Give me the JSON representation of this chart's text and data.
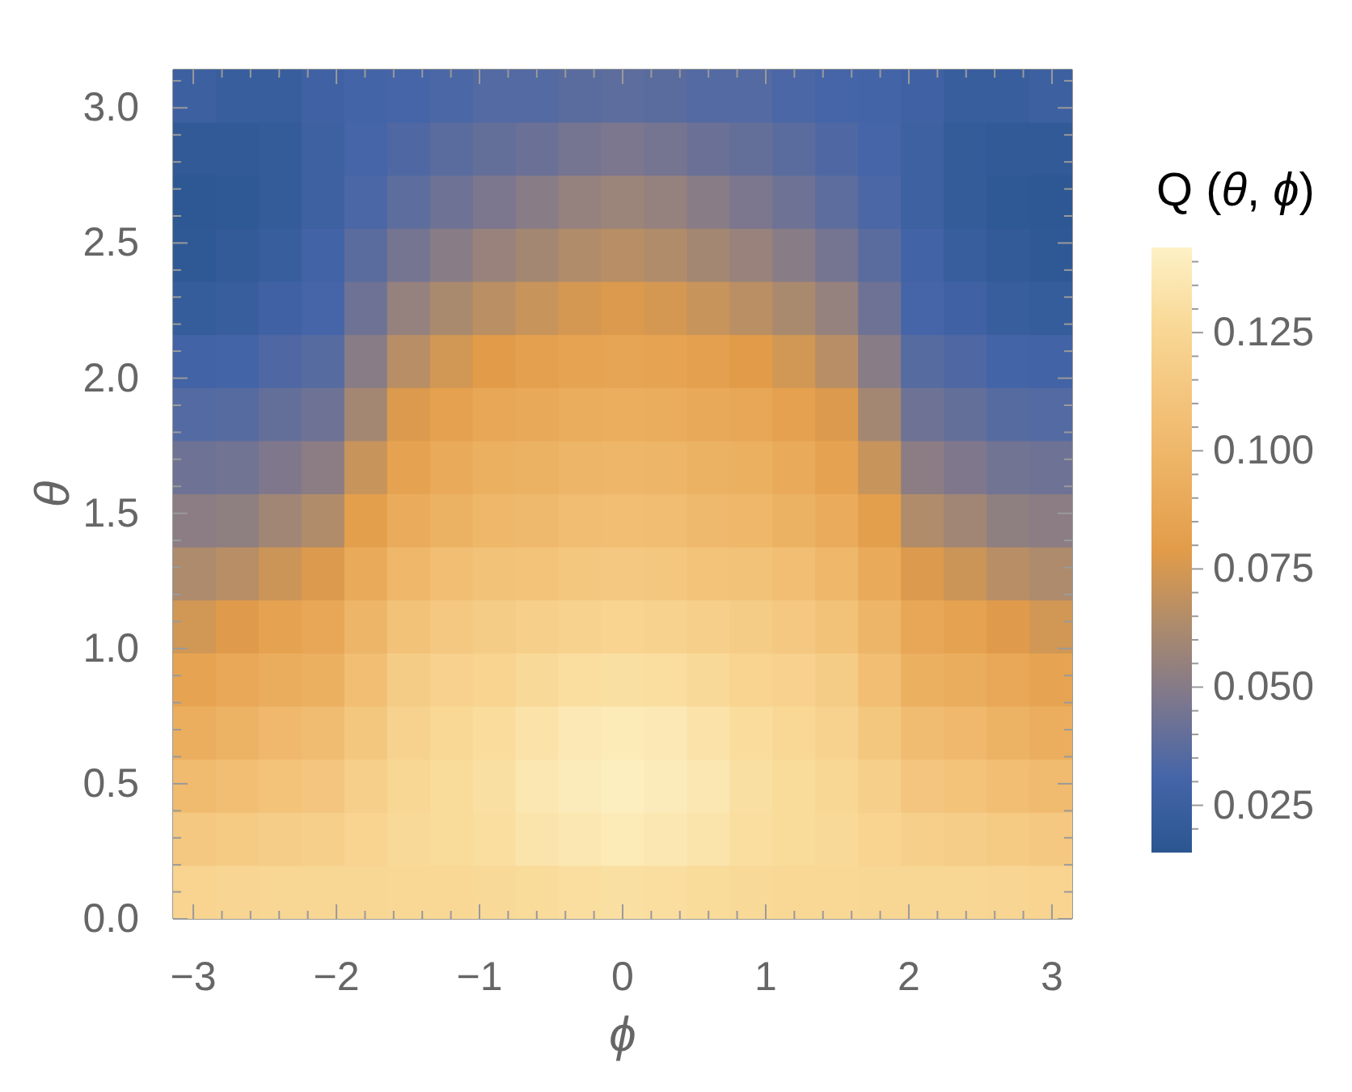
{
  "chart_data": {
    "type": "heatmap",
    "xlabel": "ϕ",
    "ylabel": "θ",
    "clabel": "Q (θ, ϕ)",
    "xlim": [
      -3.1416,
      3.1416
    ],
    "xticks": [
      {
        "value": -3,
        "label": "−3"
      },
      {
        "value": -2.8,
        "label": null
      },
      {
        "value": -2.6,
        "label": null
      },
      {
        "value": -2.4,
        "label": null
      },
      {
        "value": -2.2,
        "label": null
      },
      {
        "value": -2,
        "label": "−2"
      },
      {
        "value": -1.8,
        "label": null
      },
      {
        "value": -1.6,
        "label": null
      },
      {
        "value": -1.4,
        "label": null
      },
      {
        "value": -1.2,
        "label": null
      },
      {
        "value": -1,
        "label": "−1"
      },
      {
        "value": -0.8,
        "label": null
      },
      {
        "value": -0.6,
        "label": null
      },
      {
        "value": -0.4,
        "label": null
      },
      {
        "value": -0.2,
        "label": null
      },
      0,
      {
        "value": 0.2,
        "label": null
      },
      {
        "value": 0.4,
        "label": null
      },
      {
        "value": 0.6,
        "label": null
      },
      {
        "value": 0.8,
        "label": null
      },
      1,
      {
        "value": 1.2,
        "label": null
      },
      {
        "value": 1.4,
        "label": null
      },
      {
        "value": 1.6,
        "label": null
      },
      {
        "value": 1.8,
        "label": null
      },
      2,
      {
        "value": 2.2,
        "label": null
      },
      {
        "value": 2.4,
        "label": null
      },
      {
        "value": 2.6,
        "label": null
      },
      {
        "value": 2.8,
        "label": null
      },
      3
    ],
    "ylim": [
      0,
      3.1416
    ],
    "yticks": [
      {
        "value": 0,
        "label": "0.0"
      },
      {
        "value": 0.1,
        "label": null
      },
      {
        "value": 0.2,
        "label": null
      },
      {
        "value": 0.3,
        "label": null
      },
      {
        "value": 0.4,
        "label": null
      },
      0.5,
      {
        "value": 0.6,
        "label": null
      },
      {
        "value": 0.7,
        "label": null
      },
      {
        "value": 0.8,
        "label": null
      },
      {
        "value": 0.9,
        "label": null
      },
      {
        "value": 1,
        "label": "1.0"
      },
      {
        "value": 1.1,
        "label": null
      },
      {
        "value": 1.2,
        "label": null
      },
      {
        "value": 1.3,
        "label": null
      },
      {
        "value": 1.4,
        "label": null
      },
      1.5,
      {
        "value": 1.6,
        "label": null
      },
      {
        "value": 1.7,
        "label": null
      },
      {
        "value": 1.8,
        "label": null
      },
      {
        "value": 1.9,
        "label": null
      },
      {
        "value": 2,
        "label": "2.0"
      },
      {
        "value": 2.1,
        "label": null
      },
      {
        "value": 2.2,
        "label": null
      },
      {
        "value": 2.3,
        "label": null
      },
      {
        "value": 2.4,
        "label": null
      },
      2.5,
      {
        "value": 2.6,
        "label": null
      },
      {
        "value": 2.7,
        "label": null
      },
      {
        "value": 2.8,
        "label": null
      },
      {
        "value": 2.9,
        "label": null
      },
      {
        "value": 3,
        "label": "3.0"
      },
      {
        "value": 3.1,
        "label": null
      }
    ],
    "clim": [
      0.015,
      0.143
    ],
    "cticks": [
      {
        "value": 0.02,
        "label": null
      },
      0.025,
      {
        "value": 0.03,
        "label": null
      },
      {
        "value": 0.035,
        "label": null
      },
      {
        "value": 0.04,
        "label": null
      },
      {
        "value": 0.045,
        "label": null
      },
      {
        "value": 0.05,
        "label": "0.050"
      },
      {
        "value": 0.055,
        "label": null
      },
      {
        "value": 0.06,
        "label": null
      },
      {
        "value": 0.065,
        "label": null
      },
      {
        "value": 0.07,
        "label": null
      },
      0.075,
      {
        "value": 0.08,
        "label": null
      },
      {
        "value": 0.085,
        "label": null
      },
      {
        "value": 0.09,
        "label": null
      },
      {
        "value": 0.095,
        "label": null
      },
      {
        "value": 0.1,
        "label": "0.100"
      },
      {
        "value": 0.105,
        "label": null
      },
      {
        "value": 0.11,
        "label": null
      },
      {
        "value": 0.115,
        "label": null
      },
      {
        "value": 0.12,
        "label": null
      },
      0.125,
      {
        "value": 0.13,
        "label": null
      },
      {
        "value": 0.135,
        "label": null
      },
      {
        "value": 0.14,
        "label": null
      }
    ],
    "colors": [
      "#2a5690",
      "#4565a8",
      "#7c778e",
      "#ad8b6c",
      "#e29c49",
      "#ecb162",
      "#f3c47c",
      "#f9d997",
      "#fdf1c6"
    ],
    "cells": [
      [
        0.026,
        0.024,
        0.024,
        0.028,
        0.03,
        0.031,
        0.033,
        0.035,
        0.035,
        0.037,
        0.038,
        0.037,
        0.035,
        0.035,
        0.033,
        0.031,
        0.03,
        0.028,
        0.024,
        0.024,
        0.026
      ],
      [
        0.019,
        0.019,
        0.021,
        0.027,
        0.031,
        0.034,
        0.037,
        0.04,
        0.042,
        0.045,
        0.047,
        0.045,
        0.042,
        0.04,
        0.037,
        0.034,
        0.031,
        0.027,
        0.021,
        0.019,
        0.019
      ],
      [
        0.017,
        0.018,
        0.021,
        0.027,
        0.033,
        0.038,
        0.043,
        0.047,
        0.051,
        0.055,
        0.057,
        0.055,
        0.051,
        0.047,
        0.043,
        0.038,
        0.033,
        0.027,
        0.021,
        0.018,
        0.017
      ],
      [
        0.018,
        0.02,
        0.024,
        0.029,
        0.037,
        0.045,
        0.051,
        0.056,
        0.06,
        0.064,
        0.066,
        0.064,
        0.06,
        0.056,
        0.051,
        0.045,
        0.037,
        0.029,
        0.024,
        0.02,
        0.018
      ],
      [
        0.022,
        0.024,
        0.028,
        0.031,
        0.043,
        0.055,
        0.062,
        0.067,
        0.071,
        0.075,
        0.077,
        0.075,
        0.071,
        0.067,
        0.062,
        0.055,
        0.043,
        0.031,
        0.028,
        0.024,
        0.022
      ],
      [
        0.029,
        0.03,
        0.034,
        0.036,
        0.051,
        0.066,
        0.074,
        0.079,
        0.082,
        0.085,
        0.086,
        0.085,
        0.082,
        0.079,
        0.074,
        0.066,
        0.051,
        0.036,
        0.034,
        0.03,
        0.029
      ],
      [
        0.035,
        0.036,
        0.04,
        0.043,
        0.06,
        0.077,
        0.083,
        0.087,
        0.089,
        0.092,
        0.093,
        0.092,
        0.089,
        0.087,
        0.083,
        0.077,
        0.06,
        0.043,
        0.04,
        0.036,
        0.035
      ],
      [
        0.043,
        0.044,
        0.048,
        0.052,
        0.071,
        0.084,
        0.09,
        0.094,
        0.096,
        0.098,
        0.099,
        0.098,
        0.096,
        0.094,
        0.09,
        0.084,
        0.071,
        0.052,
        0.048,
        0.044,
        0.043
      ],
      [
        0.052,
        0.053,
        0.059,
        0.064,
        0.081,
        0.091,
        0.096,
        0.1,
        0.102,
        0.105,
        0.106,
        0.105,
        0.102,
        0.1,
        0.096,
        0.091,
        0.081,
        0.064,
        0.059,
        0.053,
        0.052
      ],
      [
        0.063,
        0.066,
        0.072,
        0.077,
        0.09,
        0.1,
        0.106,
        0.109,
        0.11,
        0.113,
        0.114,
        0.113,
        0.11,
        0.109,
        0.106,
        0.1,
        0.09,
        0.077,
        0.072,
        0.066,
        0.063
      ],
      [
        0.074,
        0.078,
        0.084,
        0.087,
        0.098,
        0.109,
        0.114,
        0.117,
        0.119,
        0.122,
        0.123,
        0.122,
        0.119,
        0.117,
        0.114,
        0.109,
        0.098,
        0.087,
        0.084,
        0.078,
        0.074
      ],
      [
        0.085,
        0.088,
        0.092,
        0.094,
        0.106,
        0.117,
        0.121,
        0.123,
        0.127,
        0.13,
        0.131,
        0.13,
        0.127,
        0.123,
        0.121,
        0.117,
        0.106,
        0.094,
        0.092,
        0.088,
        0.085
      ],
      [
        0.093,
        0.097,
        0.101,
        0.104,
        0.113,
        0.122,
        0.126,
        0.129,
        0.133,
        0.137,
        0.138,
        0.137,
        0.133,
        0.129,
        0.126,
        0.122,
        0.113,
        0.104,
        0.101,
        0.097,
        0.093
      ],
      [
        0.103,
        0.106,
        0.11,
        0.112,
        0.119,
        0.125,
        0.128,
        0.131,
        0.136,
        0.139,
        0.141,
        0.139,
        0.136,
        0.131,
        0.128,
        0.125,
        0.119,
        0.112,
        0.11,
        0.106,
        0.103
      ],
      [
        0.114,
        0.116,
        0.118,
        0.119,
        0.123,
        0.127,
        0.128,
        0.13,
        0.134,
        0.136,
        0.138,
        0.136,
        0.134,
        0.13,
        0.128,
        0.127,
        0.123,
        0.119,
        0.118,
        0.116,
        0.114
      ],
      [
        0.123,
        0.124,
        0.125,
        0.125,
        0.125,
        0.126,
        0.126,
        0.127,
        0.128,
        0.13,
        0.131,
        0.13,
        0.128,
        0.127,
        0.126,
        0.126,
        0.125,
        0.125,
        0.125,
        0.124,
        0.123
      ]
    ]
  }
}
